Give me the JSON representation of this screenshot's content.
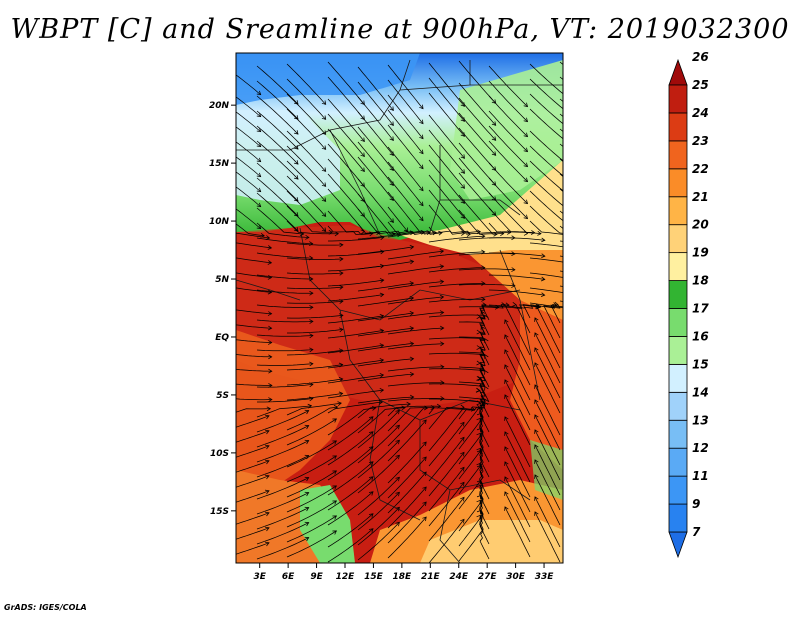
{
  "title": "WBPT [C] and Sreamline at 900hPa, VT: 2019032300",
  "footer": "GrADS: IGES/COLA",
  "map": {
    "lat_labels": [
      "20N",
      "15N",
      "10N",
      "5N",
      "EQ",
      "5S",
      "10S",
      "15S"
    ],
    "lon_labels": [
      "3E",
      "6E",
      "9E",
      "12E",
      "15E",
      "18E",
      "21E",
      "24E",
      "27E",
      "30E",
      "33E"
    ],
    "lon_range": [
      0.5,
      35
    ],
    "lat_range": [
      -19.5,
      24.5
    ]
  },
  "colorbar": {
    "labels": [
      "7",
      "9",
      "11",
      "12",
      "13",
      "14",
      "15",
      "16",
      "17",
      "18",
      "19",
      "20",
      "21",
      "22",
      "23",
      "24",
      "25",
      "26"
    ],
    "colors": [
      "#1e6ee6",
      "#2882f0",
      "#3c96f5",
      "#5aaaf5",
      "#78bef5",
      "#a0d2fa",
      "#d2f0ff",
      "#aaf096",
      "#78dc6e",
      "#32b432",
      "#fff0a0",
      "#ffd278",
      "#ffb446",
      "#fa8c28",
      "#f0641e",
      "#dc3c14",
      "#c01e10",
      "#a00a0a"
    ]
  }
}
